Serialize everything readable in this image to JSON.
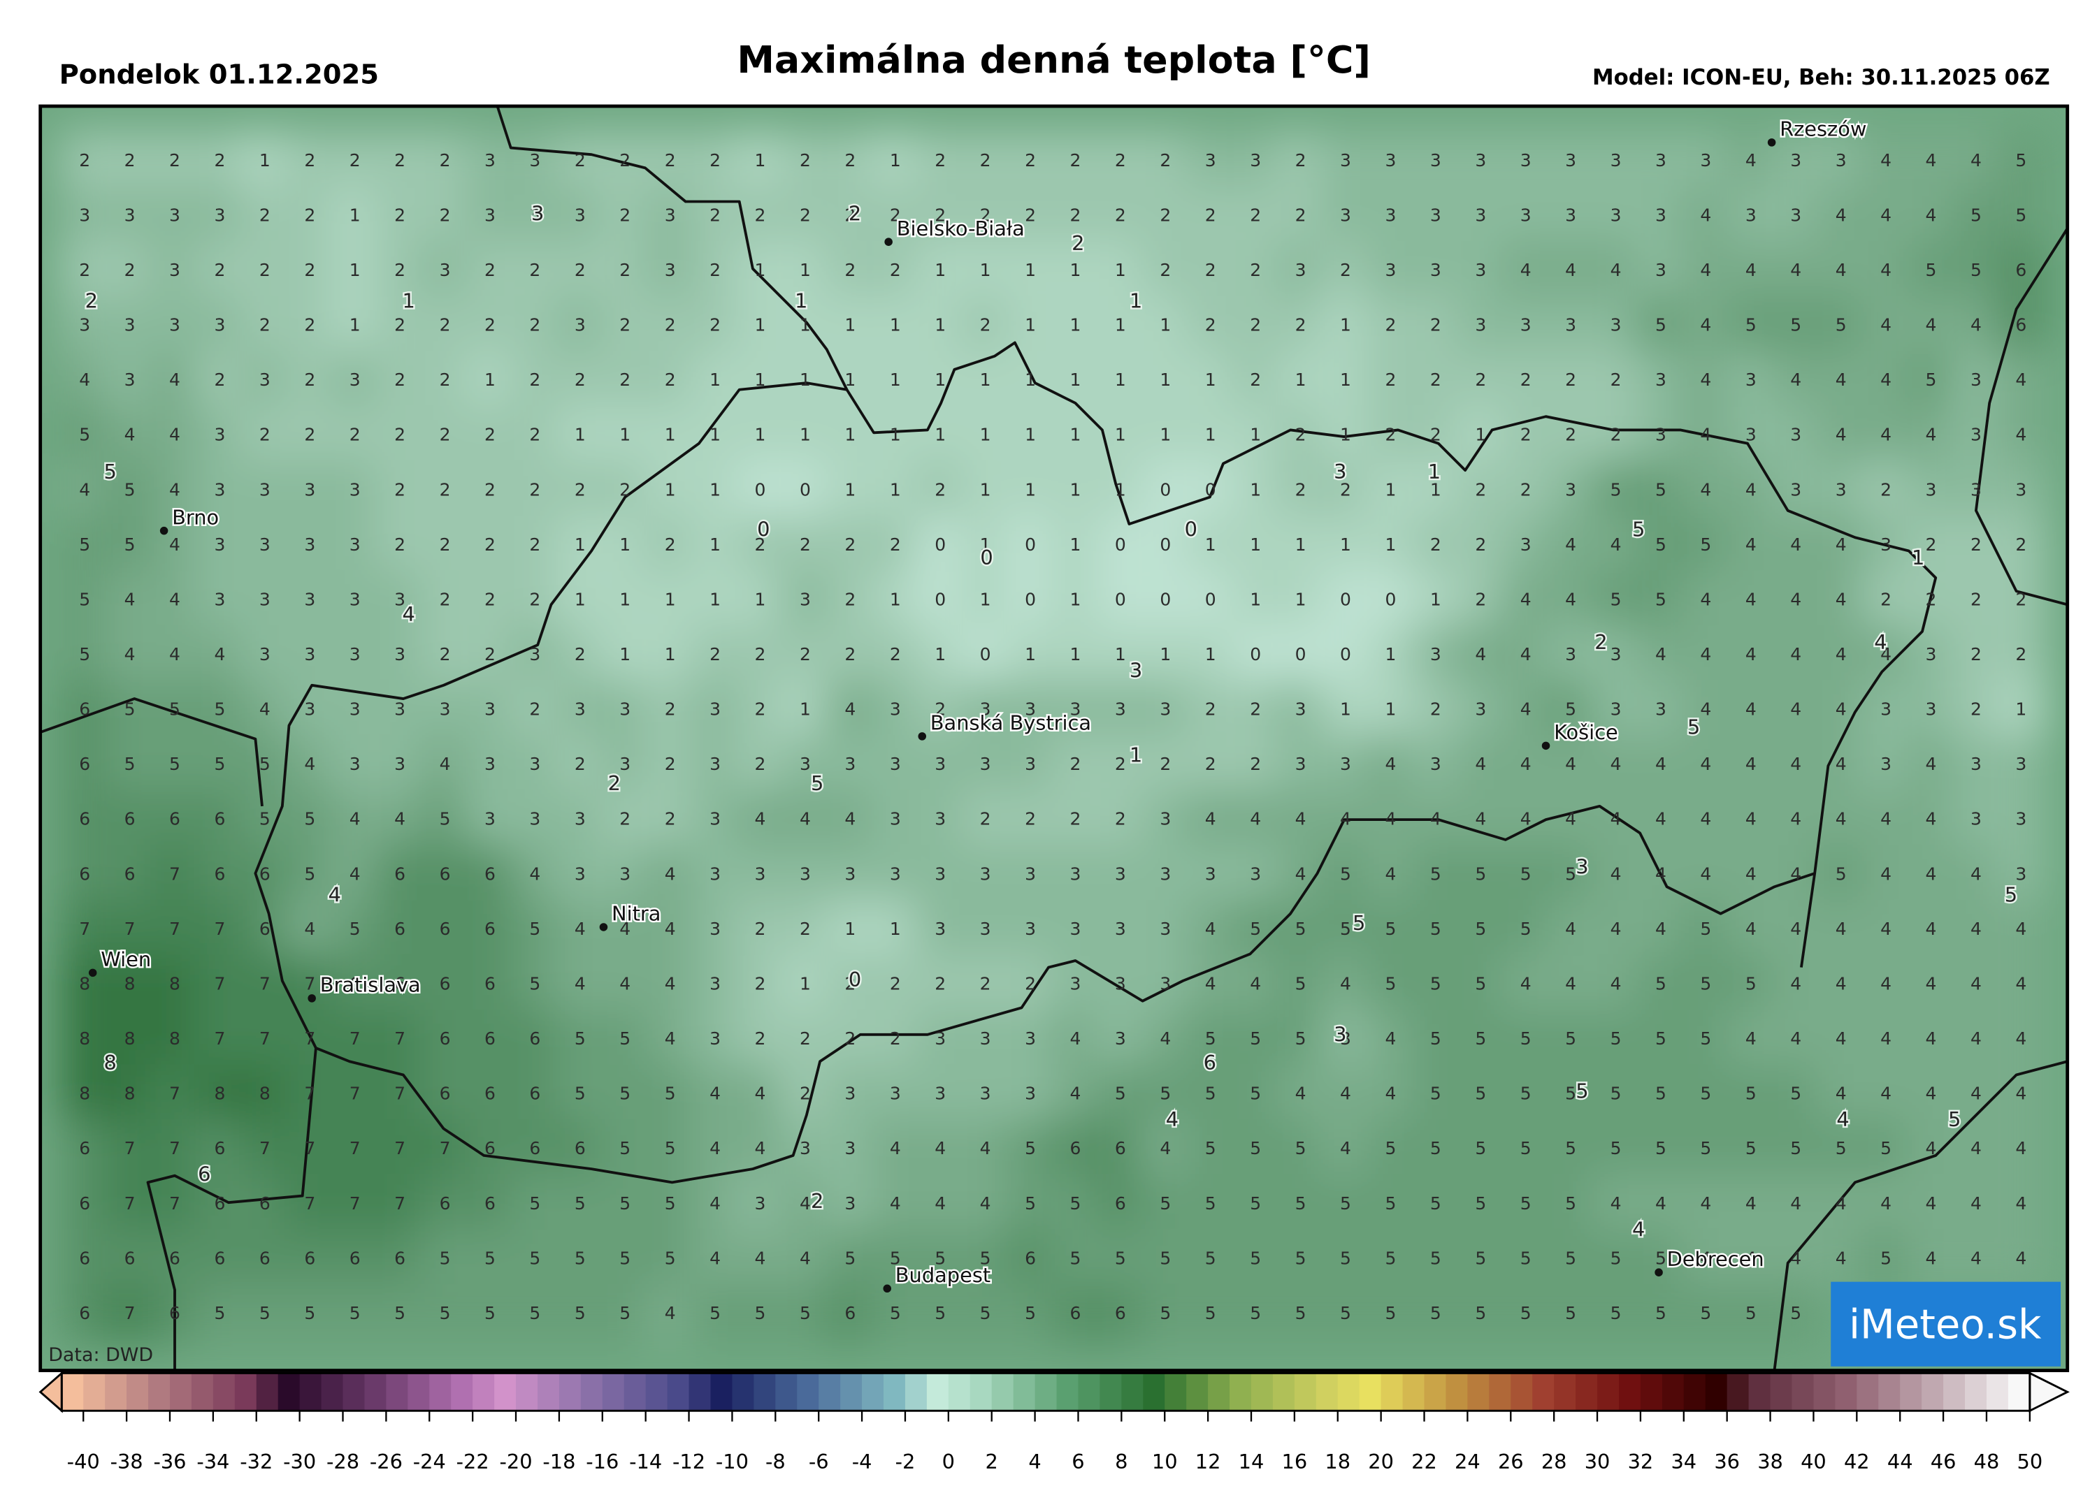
{
  "header": {
    "date": "Pondelok 01.12.2025",
    "title": "Maximálna denná teplota [°C]",
    "model": "Model: ICON-EU, Beh: 30.11.2025 06Z"
  },
  "map": {
    "grid": [
      [
        2,
        2,
        2,
        2,
        1,
        2,
        2,
        2,
        2,
        3,
        3,
        2,
        2,
        2,
        2,
        1,
        2,
        2,
        1,
        2,
        2,
        2,
        2,
        2,
        2,
        3,
        3,
        2,
        3,
        3,
        3,
        3,
        3,
        3,
        3,
        3,
        3,
        4,
        3,
        3,
        4,
        4,
        4,
        5
      ],
      [
        3,
        3,
        3,
        3,
        2,
        2,
        1,
        2,
        2,
        3,
        3,
        3,
        2,
        3,
        2,
        2,
        2,
        2,
        2,
        2,
        2,
        2,
        2,
        2,
        2,
        2,
        2,
        2,
        3,
        3,
        3,
        3,
        3,
        3,
        3,
        3,
        4,
        3,
        3,
        4,
        4,
        4,
        5,
        5
      ],
      [
        2,
        2,
        3,
        2,
        2,
        2,
        1,
        2,
        3,
        2,
        2,
        2,
        2,
        3,
        2,
        1,
        1,
        2,
        2,
        1,
        1,
        1,
        1,
        1,
        2,
        2,
        2,
        3,
        2,
        3,
        3,
        3,
        4,
        4,
        4,
        3,
        4,
        4,
        4,
        4,
        4,
        5,
        5,
        6
      ],
      [
        3,
        3,
        3,
        3,
        2,
        2,
        1,
        2,
        2,
        2,
        2,
        3,
        2,
        2,
        2,
        1,
        1,
        1,
        1,
        1,
        2,
        1,
        1,
        1,
        1,
        2,
        2,
        2,
        1,
        2,
        2,
        3,
        3,
        3,
        3,
        5,
        4,
        5,
        5,
        5,
        4,
        4,
        4,
        6
      ],
      [
        4,
        3,
        4,
        2,
        3,
        2,
        3,
        2,
        2,
        1,
        2,
        2,
        2,
        2,
        1,
        1,
        1,
        1,
        1,
        1,
        1,
        1,
        1,
        1,
        1,
        1,
        2,
        1,
        1,
        2,
        2,
        2,
        2,
        2,
        2,
        3,
        4,
        3,
        4,
        4,
        4,
        5,
        3,
        4
      ],
      [
        5,
        4,
        4,
        3,
        2,
        2,
        2,
        2,
        2,
        2,
        2,
        1,
        1,
        1,
        1,
        1,
        1,
        1,
        1,
        1,
        1,
        1,
        1,
        1,
        1,
        1,
        1,
        2,
        1,
        2,
        2,
        1,
        2,
        2,
        2,
        3,
        4,
        3,
        3,
        4,
        4,
        4,
        3,
        4
      ],
      [
        4,
        5,
        4,
        3,
        3,
        3,
        3,
        2,
        2,
        2,
        2,
        2,
        2,
        1,
        1,
        0,
        0,
        1,
        1,
        2,
        1,
        1,
        1,
        1,
        0,
        0,
        1,
        2,
        2,
        1,
        1,
        2,
        2,
        3,
        5,
        5,
        4,
        4,
        3,
        3,
        2,
        3,
        3,
        3
      ],
      [
        5,
        5,
        4,
        3,
        3,
        3,
        3,
        2,
        2,
        2,
        2,
        1,
        1,
        2,
        1,
        2,
        2,
        2,
        2,
        0,
        1,
        0,
        1,
        0,
        0,
        1,
        1,
        1,
        1,
        1,
        2,
        2,
        3,
        4,
        4,
        5,
        5,
        4,
        4,
        4,
        3,
        2,
        2,
        2
      ],
      [
        5,
        4,
        4,
        3,
        3,
        3,
        3,
        3,
        2,
        2,
        2,
        1,
        1,
        1,
        1,
        1,
        3,
        2,
        1,
        0,
        1,
        0,
        1,
        0,
        0,
        0,
        1,
        1,
        0,
        0,
        1,
        2,
        4,
        4,
        5,
        5,
        4,
        4,
        4,
        4,
        2,
        2,
        2,
        2
      ],
      [
        5,
        4,
        4,
        4,
        3,
        3,
        3,
        3,
        2,
        2,
        3,
        2,
        1,
        1,
        2,
        2,
        2,
        2,
        2,
        1,
        0,
        1,
        1,
        1,
        1,
        1,
        0,
        0,
        0,
        1,
        3,
        4,
        4,
        3,
        3,
        4,
        4,
        4,
        4,
        4,
        4,
        3,
        2,
        2
      ],
      [
        6,
        5,
        5,
        5,
        4,
        3,
        3,
        3,
        3,
        3,
        2,
        3,
        3,
        2,
        3,
        2,
        1,
        4,
        3,
        2,
        3,
        3,
        3,
        3,
        3,
        2,
        2,
        3,
        1,
        1,
        2,
        3,
        4,
        5,
        3,
        3,
        4,
        4,
        4,
        4,
        3,
        3,
        2,
        1
      ],
      [
        6,
        5,
        5,
        5,
        5,
        4,
        3,
        3,
        4,
        3,
        3,
        2,
        3,
        2,
        3,
        2,
        3,
        3,
        3,
        3,
        3,
        3,
        2,
        2,
        2,
        2,
        2,
        3,
        3,
        4,
        3,
        4,
        4,
        4,
        4,
        4,
        4,
        4,
        4,
        4,
        3,
        4,
        3,
        3
      ],
      [
        6,
        6,
        6,
        6,
        5,
        5,
        4,
        4,
        5,
        3,
        3,
        3,
        2,
        2,
        3,
        4,
        4,
        4,
        3,
        3,
        2,
        2,
        2,
        2,
        3,
        4,
        4,
        4,
        4,
        4,
        4,
        4,
        4,
        4,
        4,
        4,
        4,
        4,
        4,
        4,
        4,
        4,
        3,
        3
      ],
      [
        6,
        6,
        7,
        6,
        6,
        5,
        4,
        6,
        6,
        6,
        4,
        3,
        3,
        4,
        3,
        3,
        3,
        3,
        3,
        3,
        3,
        3,
        3,
        3,
        3,
        3,
        3,
        4,
        5,
        4,
        5,
        5,
        5,
        5,
        4,
        4,
        4,
        4,
        4,
        5,
        4,
        4,
        4,
        3
      ],
      [
        7,
        7,
        7,
        7,
        6,
        4,
        5,
        6,
        6,
        6,
        5,
        4,
        4,
        4,
        3,
        2,
        2,
        1,
        1,
        3,
        3,
        3,
        3,
        3,
        3,
        4,
        5,
        5,
        5,
        5,
        5,
        5,
        5,
        4,
        4,
        4,
        5,
        4,
        4,
        4,
        4,
        4,
        4,
        4
      ],
      [
        8,
        8,
        8,
        7,
        7,
        7,
        6,
        6,
        6,
        6,
        5,
        4,
        4,
        4,
        3,
        2,
        1,
        2,
        2,
        2,
        2,
        2,
        3,
        3,
        3,
        4,
        4,
        5,
        4,
        5,
        5,
        5,
        4,
        4,
        4,
        5,
        5,
        5,
        4,
        4,
        4,
        4,
        4,
        4
      ],
      [
        8,
        8,
        8,
        7,
        7,
        7,
        7,
        7,
        6,
        6,
        6,
        5,
        5,
        4,
        3,
        2,
        2,
        2,
        2,
        3,
        3,
        3,
        4,
        3,
        4,
        5,
        5,
        5,
        3,
        4,
        5,
        5,
        5,
        5,
        5,
        5,
        5,
        4,
        4,
        4,
        4,
        4,
        4,
        4
      ],
      [
        8,
        8,
        7,
        8,
        8,
        7,
        7,
        7,
        6,
        6,
        6,
        5,
        5,
        5,
        4,
        4,
        2,
        3,
        3,
        3,
        3,
        3,
        4,
        5,
        5,
        5,
        5,
        4,
        4,
        4,
        5,
        5,
        5,
        5,
        5,
        5,
        5,
        5,
        5,
        4,
        4,
        4,
        4,
        4
      ],
      [
        6,
        7,
        7,
        6,
        7,
        7,
        7,
        7,
        7,
        6,
        6,
        6,
        5,
        5,
        4,
        4,
        3,
        3,
        4,
        4,
        4,
        5,
        6,
        6,
        4,
        5,
        5,
        5,
        4,
        5,
        5,
        5,
        5,
        5,
        5,
        5,
        5,
        5,
        5,
        5,
        5,
        4,
        4,
        4
      ],
      [
        6,
        7,
        7,
        6,
        6,
        7,
        7,
        7,
        6,
        6,
        5,
        5,
        5,
        5,
        4,
        3,
        4,
        3,
        4,
        4,
        4,
        5,
        5,
        6,
        5,
        5,
        5,
        5,
        5,
        5,
        5,
        5,
        5,
        5,
        4,
        4,
        4,
        4,
        4,
        4,
        4,
        4,
        4,
        4
      ],
      [
        6,
        6,
        6,
        6,
        6,
        6,
        6,
        6,
        5,
        5,
        5,
        5,
        5,
        5,
        4,
        4,
        4,
        5,
        5,
        5,
        5,
        6,
        5,
        5,
        5,
        5,
        5,
        5,
        5,
        5,
        5,
        5,
        5,
        5,
        5,
        5,
        4,
        4,
        4,
        4,
        5,
        4,
        4,
        4
      ],
      [
        6,
        7,
        6,
        5,
        5,
        5,
        5,
        5,
        5,
        5,
        5,
        5,
        5,
        4,
        5,
        5,
        5,
        6,
        5,
        5,
        5,
        5,
        6,
        6,
        5,
        5,
        5,
        5,
        5,
        5,
        5,
        5,
        5,
        5,
        5,
        5,
        5,
        5,
        5,
        null,
        null,
        null,
        null,
        null
      ]
    ],
    "extrema": [
      3,
      2,
      2,
      1,
      2,
      1,
      1,
      5,
      0,
      0,
      0,
      3,
      1,
      5,
      1,
      4,
      2,
      4,
      3,
      5,
      1,
      2,
      5,
      4,
      3,
      5,
      5,
      0,
      3,
      8,
      6,
      5,
      4,
      4,
      5,
      6,
      2,
      4
    ],
    "cities": [
      "Rzeszów",
      "Bielsko-Biała",
      "Brno",
      "Banská Bystrica",
      "Košice",
      "Nitra",
      "Wien",
      "Bratislava",
      "Budapest",
      "Debrecen"
    ]
  },
  "source": "Data: DWD",
  "logo": "iMeteo.sk",
  "colorbar": {
    "ticks": [
      -40,
      -38,
      -36,
      -34,
      -32,
      -30,
      -28,
      -26,
      -24,
      -22,
      -20,
      -18,
      -16,
      -14,
      -12,
      -10,
      -8,
      -6,
      -4,
      -2,
      0,
      2,
      4,
      6,
      8,
      10,
      12,
      14,
      16,
      18,
      20,
      22,
      24,
      26,
      28,
      30,
      32,
      34,
      36,
      38,
      40,
      42,
      44,
      46,
      48,
      50
    ]
  }
}
